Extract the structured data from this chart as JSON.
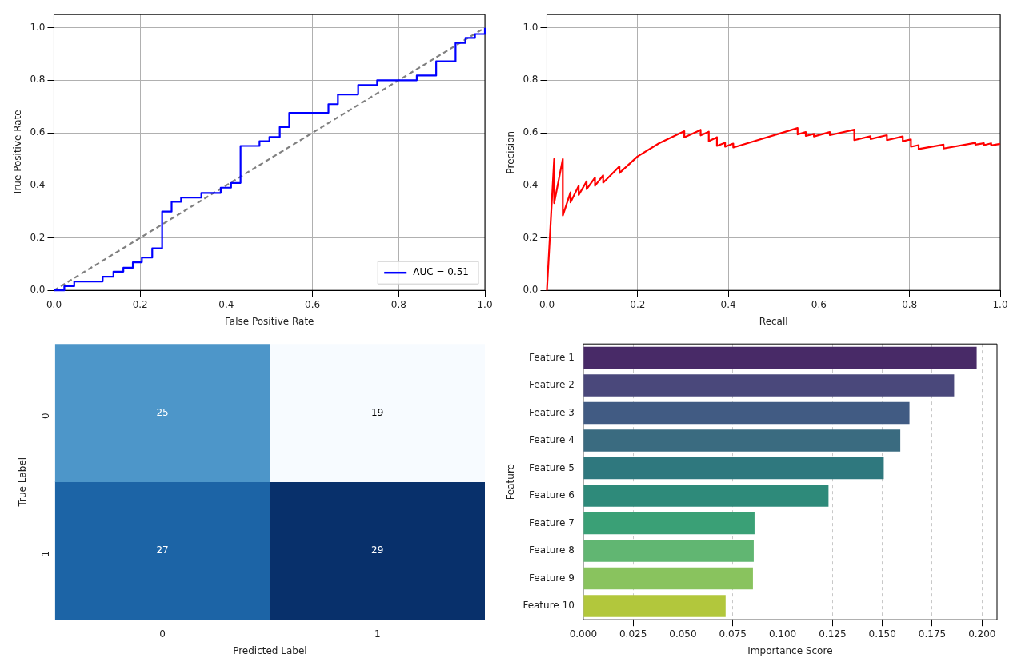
{
  "chart_data": [
    {
      "type": "step",
      "xlabel": "False Positive Rate",
      "ylabel": "True Positive Rate",
      "xlim": [
        0,
        1
      ],
      "ylim": [
        0,
        1.05
      ],
      "xticks": [
        {
          "value": 0,
          "label": "0.0"
        },
        {
          "value": 0.2,
          "label": "0.2"
        },
        {
          "value": 0.4,
          "label": "0.4"
        },
        {
          "value": 0.6,
          "label": "0.6"
        },
        {
          "value": 0.8,
          "label": "0.8"
        },
        {
          "value": 1,
          "label": "1.0"
        }
      ],
      "yticks": [
        {
          "value": 0,
          "label": "0.0"
        },
        {
          "value": 0.2,
          "label": "0.2"
        },
        {
          "value": 0.4,
          "label": "0.4"
        },
        {
          "value": 0.6,
          "label": "0.6"
        },
        {
          "value": 0.8,
          "label": "0.8"
        },
        {
          "value": 1,
          "label": "1.0"
        }
      ],
      "grid": true,
      "legend": "bottom right",
      "marker": "none",
      "series": [
        {
          "name": "AUC = 0.51",
          "color": "#0000ff",
          "line_style": "solid",
          "x": [
            0,
            0.024,
            0.047,
            0.113,
            0.138,
            0.161,
            0.183,
            0.204,
            0.228,
            0.251,
            0.273,
            0.295,
            0.342,
            0.387,
            0.411,
            0.433,
            0.477,
            0.5,
            0.524,
            0.546,
            0.637,
            0.659,
            0.706,
            0.75,
            0.842,
            0.887,
            0.932,
            0.955,
            0.977,
            1.0
          ],
          "values": [
            0,
            0.016,
            0.034,
            0.052,
            0.071,
            0.086,
            0.107,
            0.125,
            0.16,
            0.3,
            0.337,
            0.353,
            0.371,
            0.391,
            0.409,
            0.55,
            0.568,
            0.584,
            0.622,
            0.676,
            0.709,
            0.746,
            0.782,
            0.8,
            0.818,
            0.872,
            0.942,
            0.961,
            0.976,
            1.0
          ]
        },
        {
          "type": "line",
          "color": "#808080",
          "line_style": "dashed",
          "x": [
            0,
            1
          ],
          "values": [
            0,
            1
          ]
        }
      ]
    },
    {
      "type": "line",
      "xlabel": "Recall",
      "ylabel": "Precision",
      "xlim": [
        0,
        1
      ],
      "ylim": [
        0,
        1.05
      ],
      "xticks": [
        {
          "value": 0,
          "label": "0.0"
        },
        {
          "value": 0.2,
          "label": "0.2"
        },
        {
          "value": 0.4,
          "label": "0.4"
        },
        {
          "value": 0.6,
          "label": "0.6"
        },
        {
          "value": 0.8,
          "label": "0.8"
        },
        {
          "value": 1,
          "label": "1.0"
        }
      ],
      "yticks": [
        {
          "value": 0,
          "label": "0.0"
        },
        {
          "value": 0.2,
          "label": "0.2"
        },
        {
          "value": 0.4,
          "label": "0.4"
        },
        {
          "value": 0.6,
          "label": "0.6"
        },
        {
          "value": 0.8,
          "label": "0.8"
        },
        {
          "value": 1,
          "label": "1.0"
        }
      ],
      "grid": true,
      "marker": "none",
      "series": [
        {
          "color": "#ff0000",
          "line_style": "solid",
          "x": [
            0,
            0.016,
            0.016,
            0.035,
            0.035,
            0.052,
            0.052,
            0.07,
            0.07,
            0.0875,
            0.0875,
            0.106,
            0.106,
            0.124,
            0.124,
            0.16,
            0.16,
            0.2,
            0.247,
            0.303,
            0.303,
            0.339,
            0.339,
            0.357,
            0.357,
            0.375,
            0.375,
            0.393,
            0.393,
            0.411,
            0.411,
            0.553,
            0.553,
            0.571,
            0.571,
            0.589,
            0.589,
            0.624,
            0.624,
            0.678,
            0.678,
            0.714,
            0.714,
            0.75,
            0.75,
            0.785,
            0.785,
            0.803,
            0.803,
            0.82,
            0.82,
            0.875,
            0.875,
            0.945,
            0.945,
            0.964,
            0.964,
            0.98,
            0.98,
            1.0
          ],
          "values": [
            0,
            0.5,
            0.332,
            0.5,
            0.285,
            0.373,
            0.335,
            0.398,
            0.363,
            0.415,
            0.385,
            0.429,
            0.398,
            0.438,
            0.41,
            0.472,
            0.447,
            0.51,
            0.56,
            0.606,
            0.583,
            0.611,
            0.59,
            0.604,
            0.568,
            0.583,
            0.55,
            0.562,
            0.547,
            0.559,
            0.544,
            0.618,
            0.594,
            0.603,
            0.588,
            0.596,
            0.586,
            0.603,
            0.591,
            0.612,
            0.572,
            0.587,
            0.576,
            0.591,
            0.572,
            0.586,
            0.568,
            0.575,
            0.547,
            0.553,
            0.538,
            0.555,
            0.54,
            0.562,
            0.555,
            0.56,
            0.553,
            0.56,
            0.552,
            0.558
          ]
        }
      ]
    },
    {
      "type": "heatmap",
      "xlabel": "Predicted Label",
      "ylabel": "True Label",
      "categories": [
        "0",
        "1"
      ],
      "y_categories": [
        "0",
        "1"
      ],
      "cells": [
        [
          25,
          19
        ],
        [
          27,
          29
        ]
      ],
      "data_labels": true
    },
    {
      "type": "bar",
      "orientation": "horizontal",
      "xlabel": "Importance Score",
      "ylabel": "Feature",
      "categories": [
        "Feature 1",
        "Feature 2",
        "Feature 3",
        "Feature 4",
        "Feature 5",
        "Feature 6",
        "Feature 7",
        "Feature 8",
        "Feature 9",
        "Feature 10"
      ],
      "values": [
        0.1973,
        0.186,
        0.1636,
        0.159,
        0.1507,
        0.123,
        0.0859,
        0.0855,
        0.0851,
        0.0714
      ],
      "colors": [
        "#482a67",
        "#4a487b",
        "#415b83",
        "#3a6b80",
        "#2f787e",
        "#2e8a7a",
        "#3aa076",
        "#61b672",
        "#89c35e",
        "#b2c73c"
      ],
      "xlim": [
        0,
        0.2075
      ],
      "xticks": [
        {
          "value": 0,
          "label": "0.000"
        },
        {
          "value": 0.025,
          "label": "0.025"
        },
        {
          "value": 0.05,
          "label": "0.050"
        },
        {
          "value": 0.075,
          "label": "0.075"
        },
        {
          "value": 0.1,
          "label": "0.100"
        },
        {
          "value": 0.125,
          "label": "0.125"
        },
        {
          "value": 0.15,
          "label": "0.150"
        },
        {
          "value": 0.175,
          "label": "0.175"
        },
        {
          "value": 0.2,
          "label": "0.200"
        }
      ],
      "grid": "x"
    }
  ]
}
